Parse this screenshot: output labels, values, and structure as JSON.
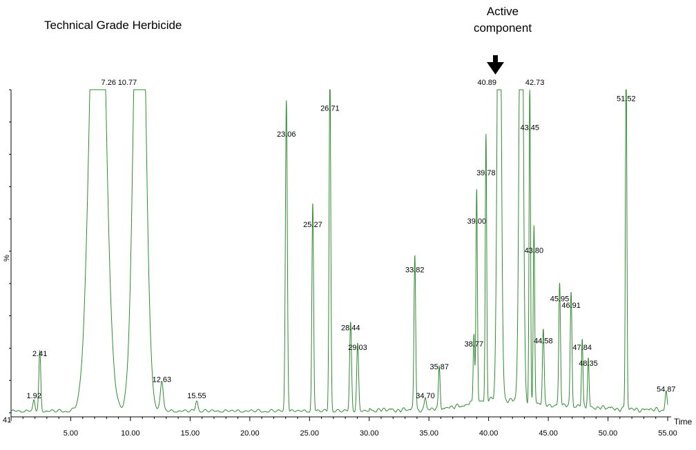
{
  "chart_data": {
    "type": "line",
    "title": "Technical Grade Herbicide",
    "annotation": {
      "line1": "Active",
      "line2": "component",
      "marker": "down-arrow-icon",
      "points_to": 40.89
    },
    "xlabel": "Time",
    "ylabel": "%",
    "y_offset_label": "41",
    "xlim": [
      0.0,
      55.0
    ],
    "ylim": [
      0,
      100
    ],
    "x_ticks": [
      "5.00",
      "10.00",
      "15.00",
      "20.00",
      "25.00",
      "30.00",
      "35.00",
      "40.00",
      "45.00",
      "50.00",
      "55.00"
    ],
    "grid": false,
    "line_color": "#2e8b2e",
    "peaks": [
      {
        "rt": 1.92,
        "height": 3,
        "width": 0.08,
        "label": "1.92"
      },
      {
        "rt": 2.41,
        "height": 16,
        "width": 0.08,
        "label": "2.41"
      },
      {
        "rt": 7.26,
        "height": 100,
        "width": 0.6,
        "label": "7.26",
        "saturated": true
      },
      {
        "rt": 10.77,
        "height": 100,
        "width": 0.45,
        "label": "10.77",
        "saturated": true
      },
      {
        "rt": 12.63,
        "height": 8,
        "width": 0.12,
        "label": "12.63"
      },
      {
        "rt": 15.55,
        "height": 3,
        "width": 0.1,
        "label": "15.55"
      },
      {
        "rt": 23.06,
        "height": 84,
        "width": 0.08,
        "label": "23.06"
      },
      {
        "rt": 25.27,
        "height": 56,
        "width": 0.07,
        "label": "25.27"
      },
      {
        "rt": 26.71,
        "height": 92,
        "width": 0.07,
        "label": "26.71"
      },
      {
        "rt": 28.44,
        "height": 24,
        "width": 0.08,
        "label": "28.44"
      },
      {
        "rt": 29.03,
        "height": 18,
        "width": 0.08,
        "label": "29.03"
      },
      {
        "rt": 33.82,
        "height": 42,
        "width": 0.07,
        "label": "33.82"
      },
      {
        "rt": 34.7,
        "height": 3,
        "width": 0.08,
        "label": "34.70"
      },
      {
        "rt": 35.87,
        "height": 12,
        "width": 0.07,
        "label": "35.87"
      },
      {
        "rt": 38.77,
        "height": 19,
        "width": 0.06,
        "label": "38.77"
      },
      {
        "rt": 39.0,
        "height": 57,
        "width": 0.06,
        "label": "39.00"
      },
      {
        "rt": 39.78,
        "height": 72,
        "width": 0.06,
        "label": "39.78"
      },
      {
        "rt": 40.89,
        "height": 100,
        "width": 0.15,
        "label": "40.89",
        "saturated": true
      },
      {
        "rt": 42.73,
        "height": 100,
        "width": 0.15,
        "label": "42.73",
        "saturated": true
      },
      {
        "rt": 43.45,
        "height": 86,
        "width": 0.06,
        "label": "43.45"
      },
      {
        "rt": 43.8,
        "height": 48,
        "width": 0.06,
        "label": "43.80"
      },
      {
        "rt": 44.58,
        "height": 20,
        "width": 0.07,
        "label": "44.58"
      },
      {
        "rt": 45.95,
        "height": 33,
        "width": 0.07,
        "label": "45.95"
      },
      {
        "rt": 46.91,
        "height": 31,
        "width": 0.07,
        "label": "46.91"
      },
      {
        "rt": 47.84,
        "height": 18,
        "width": 0.06,
        "label": "47.84"
      },
      {
        "rt": 48.35,
        "height": 13,
        "width": 0.06,
        "label": "48.35"
      },
      {
        "rt": 51.52,
        "height": 95,
        "width": 0.06,
        "label": "51.52"
      },
      {
        "rt": 54.87,
        "height": 5,
        "width": 0.08,
        "label": "54.87"
      }
    ]
  }
}
